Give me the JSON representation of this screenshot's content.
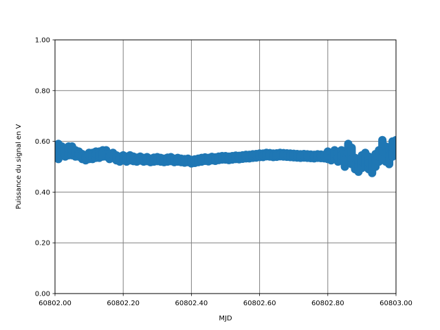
{
  "chart_data": {
    "type": "scatter",
    "title": "",
    "xlabel": "MJD",
    "ylabel": "Puissance du signal en V",
    "xlim": [
      60802.0,
      60803.0
    ],
    "ylim": [
      0.0,
      1.0
    ],
    "x_ticks": [
      60802.0,
      60802.2,
      60802.4,
      60802.6,
      60802.8,
      60803.0
    ],
    "x_tick_labels": [
      "60802.00",
      "60802.20",
      "60802.40",
      "60802.60",
      "60802.80",
      "60803.00"
    ],
    "y_ticks": [
      0.0,
      0.2,
      0.4,
      0.6,
      0.8,
      1.0
    ],
    "y_tick_labels": [
      "0.00",
      "0.20",
      "0.40",
      "0.60",
      "0.80",
      "1.00"
    ],
    "grid": true,
    "grid_color": "#808080",
    "marker_color": "#1f77b4",
    "series": [
      {
        "x": [
          60802.0,
          60802.01,
          60802.02,
          60802.03,
          60802.04,
          60802.05,
          60802.06,
          60802.07,
          60802.08,
          60802.09,
          60802.1,
          60802.11,
          60802.12,
          60802.13,
          60802.14,
          60802.15,
          60802.16,
          60802.17,
          60802.18,
          60802.19,
          60802.2,
          60802.21,
          60802.22,
          60802.23,
          60802.24,
          60802.25,
          60802.26,
          60802.27,
          60802.28,
          60802.29,
          60802.3,
          60802.31,
          60802.32,
          60802.33,
          60802.34,
          60802.35,
          60802.36,
          60802.37,
          60802.38,
          60802.39,
          60802.4,
          60802.41,
          60802.42,
          60802.43,
          60802.44,
          60802.45,
          60802.46,
          60802.47,
          60802.48,
          60802.49,
          60802.5,
          60802.51,
          60802.52,
          60802.53,
          60802.54,
          60802.55,
          60802.56,
          60802.57,
          60802.58,
          60802.59,
          60802.6,
          60802.61,
          60802.62,
          60802.63,
          60802.64,
          60802.65,
          60802.66,
          60802.67,
          60802.68,
          60802.69,
          60802.7,
          60802.71,
          60802.72,
          60802.73,
          60802.74,
          60802.75,
          60802.76,
          60802.77,
          60802.78,
          60802.79,
          60802.8,
          60802.81,
          60802.82,
          60802.83,
          60802.84,
          60802.85,
          60802.86,
          60802.87,
          60802.88,
          60802.89,
          60802.9,
          60802.91,
          60802.92,
          60802.93,
          60802.94,
          60802.95,
          60802.96,
          60802.97,
          60802.98,
          60802.99,
          60803.0
        ],
        "y": [
          0.55,
          0.575,
          0.56,
          0.545,
          0.57,
          0.565,
          0.555,
          0.55,
          0.54,
          0.535,
          0.545,
          0.54,
          0.55,
          0.545,
          0.555,
          0.55,
          0.54,
          0.545,
          0.535,
          0.53,
          0.535,
          0.53,
          0.535,
          0.53,
          0.528,
          0.532,
          0.527,
          0.53,
          0.525,
          0.528,
          0.53,
          0.527,
          0.525,
          0.528,
          0.53,
          0.525,
          0.527,
          0.525,
          0.523,
          0.525,
          0.52,
          0.522,
          0.525,
          0.527,
          0.53,
          0.528,
          0.532,
          0.53,
          0.533,
          0.535,
          0.535,
          0.533,
          0.535,
          0.537,
          0.536,
          0.538,
          0.54,
          0.54,
          0.542,
          0.543,
          0.545,
          0.545,
          0.548,
          0.547,
          0.545,
          0.546,
          0.548,
          0.547,
          0.546,
          0.545,
          0.544,
          0.543,
          0.542,
          0.543,
          0.542,
          0.541,
          0.54,
          0.542,
          0.541,
          0.54,
          0.545,
          0.538,
          0.55,
          0.535,
          0.545,
          0.52,
          0.555,
          0.53,
          0.51,
          0.5,
          0.52,
          0.53,
          0.515,
          0.5,
          0.525,
          0.54,
          0.56,
          0.555,
          0.53,
          0.575,
          0.585
        ],
        "y_low": [
          0.54,
          0.53,
          0.545,
          0.54,
          0.545,
          0.545,
          0.54,
          0.54,
          0.53,
          0.525,
          0.53,
          0.53,
          0.535,
          0.535,
          0.54,
          0.54,
          0.53,
          0.535,
          0.525,
          0.52,
          0.525,
          0.52,
          0.525,
          0.522,
          0.52,
          0.524,
          0.52,
          0.522,
          0.518,
          0.52,
          0.522,
          0.52,
          0.518,
          0.52,
          0.522,
          0.518,
          0.52,
          0.518,
          0.516,
          0.518,
          0.513,
          0.515,
          0.518,
          0.52,
          0.523,
          0.521,
          0.525,
          0.523,
          0.526,
          0.528,
          0.528,
          0.526,
          0.528,
          0.53,
          0.529,
          0.531,
          0.533,
          0.533,
          0.535,
          0.536,
          0.538,
          0.538,
          0.541,
          0.54,
          0.538,
          0.539,
          0.541,
          0.54,
          0.539,
          0.538,
          0.537,
          0.536,
          0.535,
          0.536,
          0.535,
          0.534,
          0.533,
          0.535,
          0.534,
          0.533,
          0.53,
          0.525,
          0.53,
          0.52,
          0.525,
          0.5,
          0.525,
          0.51,
          0.49,
          0.48,
          0.495,
          0.5,
          0.49,
          0.475,
          0.5,
          0.52,
          0.53,
          0.52,
          0.51,
          0.54,
          0.56
        ],
        "y_high": [
          0.58,
          0.59,
          0.58,
          0.57,
          0.58,
          0.58,
          0.565,
          0.56,
          0.55,
          0.545,
          0.555,
          0.555,
          0.56,
          0.56,
          0.565,
          0.565,
          0.55,
          0.555,
          0.545,
          0.54,
          0.545,
          0.54,
          0.545,
          0.54,
          0.536,
          0.54,
          0.535,
          0.538,
          0.532,
          0.536,
          0.538,
          0.535,
          0.532,
          0.536,
          0.538,
          0.532,
          0.535,
          0.532,
          0.53,
          0.532,
          0.527,
          0.529,
          0.532,
          0.535,
          0.537,
          0.535,
          0.539,
          0.537,
          0.54,
          0.542,
          0.542,
          0.54,
          0.542,
          0.544,
          0.543,
          0.545,
          0.547,
          0.547,
          0.549,
          0.55,
          0.552,
          0.552,
          0.555,
          0.554,
          0.552,
          0.553,
          0.555,
          0.554,
          0.553,
          0.552,
          0.551,
          0.55,
          0.549,
          0.55,
          0.549,
          0.548,
          0.547,
          0.549,
          0.548,
          0.547,
          0.56,
          0.55,
          0.565,
          0.555,
          0.565,
          0.55,
          0.59,
          0.575,
          0.535,
          0.525,
          0.545,
          0.555,
          0.54,
          0.535,
          0.55,
          0.565,
          0.605,
          0.58,
          0.565,
          0.6,
          0.605
        ]
      }
    ]
  }
}
